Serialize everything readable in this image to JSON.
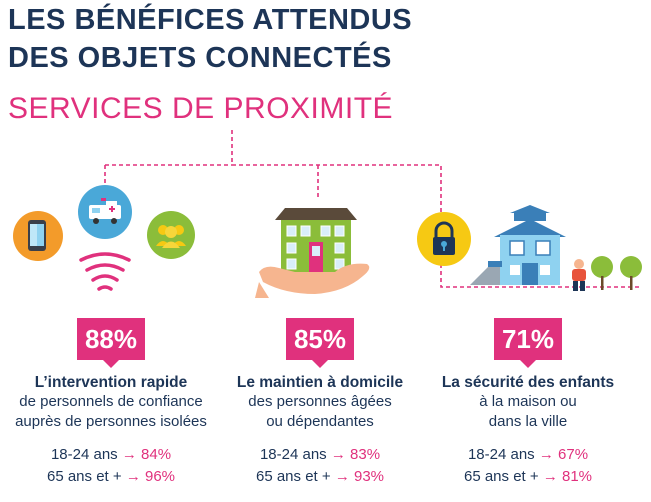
{
  "title": {
    "line1": "LES BÉNÉFICES ATTENDUS",
    "line2": "DES OBJETS CONNECTÉS"
  },
  "subtitle": "SERVICES DE PROXIMITÉ",
  "columns": [
    {
      "percent": "88%",
      "title": "L’intervention rapide",
      "desc_line1": "de personnels de confiance",
      "desc_line2": "auprès de personnes isolées",
      "stats": [
        {
          "label": "18-24 ans",
          "arrow": "→",
          "value": "84%"
        },
        {
          "label": "65 ans et +",
          "arrow": "→",
          "value": "96%"
        }
      ]
    },
    {
      "percent": "85%",
      "title": "Le maintien à domicile",
      "desc_line1": "des personnes âgées",
      "desc_line2": "ou dépendantes",
      "stats": [
        {
          "label": "18-24 ans",
          "arrow": "→",
          "value": "83%"
        },
        {
          "label": "65 ans et +",
          "arrow": "→",
          "value": "93%"
        }
      ]
    },
    {
      "percent": "71%",
      "title": "La sécurité des enfants",
      "desc_line1": "à la maison ou",
      "desc_line2": "dans la ville",
      "stats": [
        {
          "label": "18-24 ans",
          "arrow": "→",
          "value": "67%"
        },
        {
          "label": "65 ans et +",
          "arrow": "→",
          "value": "81%"
        }
      ]
    }
  ],
  "colors": {
    "navy": "#1d3557",
    "pink": "#e0317d",
    "orange": "#f39b2a",
    "blue": "#4aa8d8",
    "green": "#8bbd3a",
    "yellow": "#f6c913"
  },
  "icons": [
    "smartphone-icon",
    "ambulance-icon",
    "group-icon",
    "signal-waves-icon",
    "house-in-hand-icon",
    "padlock-icon",
    "school-house-icon",
    "child-icon",
    "tree-icon"
  ]
}
